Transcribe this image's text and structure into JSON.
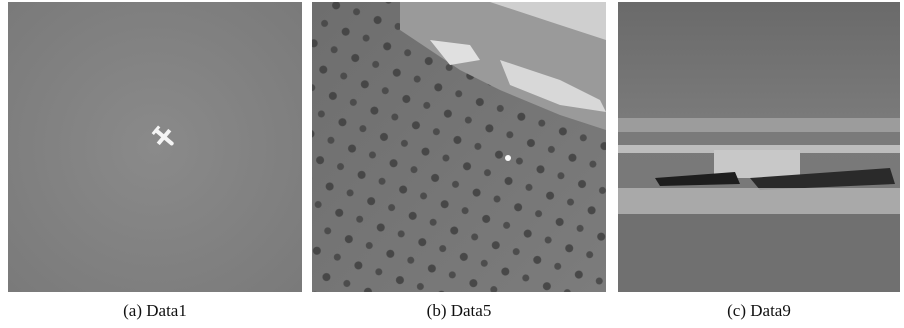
{
  "panels": [
    {
      "caption": "(a) Data1"
    },
    {
      "caption": "(b) Data5"
    },
    {
      "caption": "(c) Data9"
    }
  ]
}
